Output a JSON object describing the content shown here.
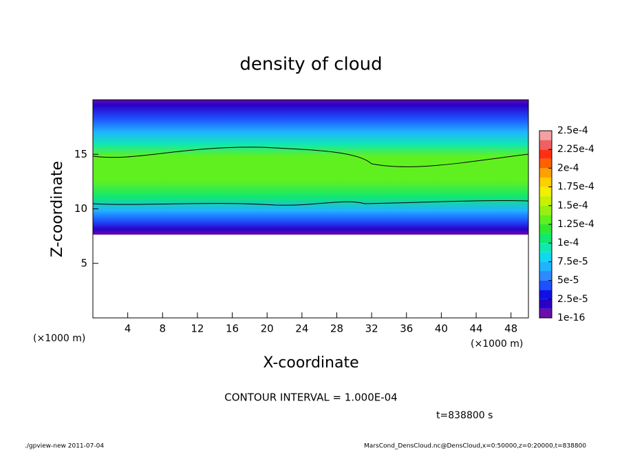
{
  "chart_data": {
    "type": "contour",
    "title": "density of cloud",
    "x_label": "X-coordinate",
    "y_label": "Z-coordinate",
    "x_unit": "(×1000 m)",
    "y_unit": "(×1000 m)",
    "xlim": [
      0,
      50
    ],
    "xticks": [
      4,
      8,
      12,
      16,
      20,
      24,
      28,
      32,
      36,
      40,
      44,
      48
    ],
    "ylim": [
      0,
      20
    ],
    "yticks": [
      5,
      10,
      15
    ],
    "colorbar": {
      "ticks": [
        {
          "value": 1e-16,
          "label": "1e-16"
        },
        {
          "value": 2.5e-05,
          "label": "2.5e-5"
        },
        {
          "value": 5e-05,
          "label": "5e-5"
        },
        {
          "value": 7.5e-05,
          "label": "7.5e-5"
        },
        {
          "value": 0.0001,
          "label": "1e-4"
        },
        {
          "value": 0.000125,
          "label": "1.25e-4"
        },
        {
          "value": 0.00015,
          "label": "1.5e-4"
        },
        {
          "value": 0.000175,
          "label": "1.75e-4"
        },
        {
          "value": 0.0002,
          "label": "2e-4"
        },
        {
          "value": 0.000225,
          "label": "2.25e-4"
        },
        {
          "value": 0.00025,
          "label": "2.5e-4"
        }
      ],
      "colors": [
        "#6a0dad",
        "#2a00c8",
        "#1010e6",
        "#1e50ff",
        "#2a8cff",
        "#20b4ff",
        "#10d8f0",
        "#10e8b0",
        "#10e870",
        "#30e830",
        "#60f020",
        "#98f010",
        "#c8f000",
        "#f0f000",
        "#ffd000",
        "#ffa000",
        "#ff6000",
        "#ff3010",
        "#f06060",
        "#f4a0a0"
      ]
    },
    "contour_interval": "CONTOUR INTERVAL = 1.000E-04",
    "time_label": "t=838800 s",
    "footer_left": "./gpview-new   2011-07-04",
    "footer_right": "MarsCond_DensCloud.nc@DensCloud,x=0:50000,z=0:20000,t=838800"
  }
}
